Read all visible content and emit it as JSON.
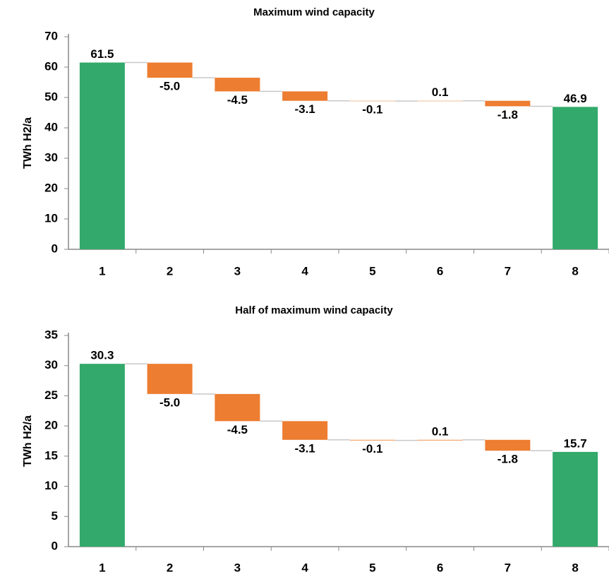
{
  "chart_data": [
    {
      "type": "waterfall",
      "title": "Maximum wind capacity",
      "ylabel": "TWh H2/a",
      "categories": [
        "1",
        "2",
        "3",
        "4",
        "5",
        "6",
        "7",
        "8"
      ],
      "values": [
        61.5,
        -5.0,
        -4.5,
        -3.1,
        -0.1,
        0.1,
        -1.8,
        46.9
      ],
      "value_labels": [
        "61.5",
        "-5.0",
        "-4.5",
        "-3.1",
        "-0.1",
        "0.1",
        "-1.8",
        "46.9"
      ],
      "total_color": "#33a96b",
      "change_color": "#ed7d31",
      "ylim": [
        0,
        70
      ],
      "yticks": [
        0,
        10,
        20,
        30,
        40,
        50,
        60,
        70
      ]
    },
    {
      "type": "waterfall",
      "title": "Half of maximum wind capacity",
      "ylabel": "TWh H2/a",
      "categories": [
        "1",
        "2",
        "3",
        "4",
        "5",
        "6",
        "7",
        "8"
      ],
      "values": [
        30.3,
        -5.0,
        -4.5,
        -3.1,
        -0.1,
        0.1,
        -1.8,
        15.7
      ],
      "value_labels": [
        "30.3",
        "-5.0",
        "-4.5",
        "-3.1",
        "-0.1",
        "0.1",
        "-1.8",
        "15.7"
      ],
      "total_color": "#33a96b",
      "change_color": "#ed7d31",
      "ylim": [
        0,
        35
      ],
      "yticks": [
        0,
        5,
        10,
        15,
        20,
        25,
        30,
        35
      ]
    }
  ]
}
